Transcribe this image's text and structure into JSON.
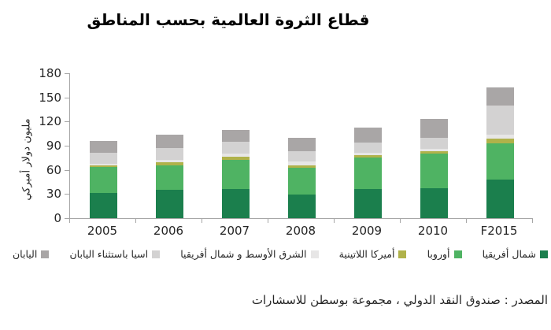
{
  "title": "قطاع الثروة العالمية بحسب المناطق",
  "source": "المصدر : صندوق النقد الدولي ، مجموعة بوسطن للاسشارات",
  "colors": {
    "axis": "#a6a6a6",
    "text": "#262626",
    "background": "#ffffff"
  },
  "chart_data": {
    "type": "bar",
    "stacked": true,
    "title": "قطاع الثروة العالمية بحسب المناطق",
    "ylabel": "مليون دولار أميركي",
    "xlabel": "",
    "categories": [
      "2005",
      "2006",
      "2007",
      "2008",
      "2009",
      "2010",
      "F2015"
    ],
    "series": [
      {
        "name": "شمال أفريقيا",
        "color": "#1b7f4d",
        "values": [
          31,
          35,
          36,
          29,
          36,
          37,
          48
        ]
      },
      {
        "name": "أوروبا",
        "color": "#4fb363",
        "values": [
          33,
          31,
          36,
          34,
          39,
          43,
          45
        ]
      },
      {
        "name": "أميركا اللاتينية",
        "color": "#b0b24a",
        "values": [
          2,
          3,
          4,
          3,
          3,
          3,
          6
        ]
      },
      {
        "name": "الشرق الأوسط و شمال أفريقيا",
        "color": "#e7e6e6",
        "values": [
          2,
          3,
          4,
          4,
          3,
          3,
          5
        ]
      },
      {
        "name": "اسيا باستثناء اليابان",
        "color": "#d3d2d2",
        "values": [
          13,
          15,
          15,
          13,
          13,
          14,
          36
        ]
      },
      {
        "name": "اليابان",
        "color": "#a9a6a6",
        "values": [
          15,
          17,
          15,
          17,
          19,
          23,
          22
        ]
      }
    ],
    "totals": [
      96,
      104,
      110,
      100,
      113,
      123,
      162
    ],
    "ylim": [
      0,
      180
    ],
    "yticks": [
      0,
      30,
      60,
      90,
      120,
      150,
      180
    ],
    "grid": false,
    "legend_position": "bottom",
    "legend_order": "right-to-left"
  }
}
